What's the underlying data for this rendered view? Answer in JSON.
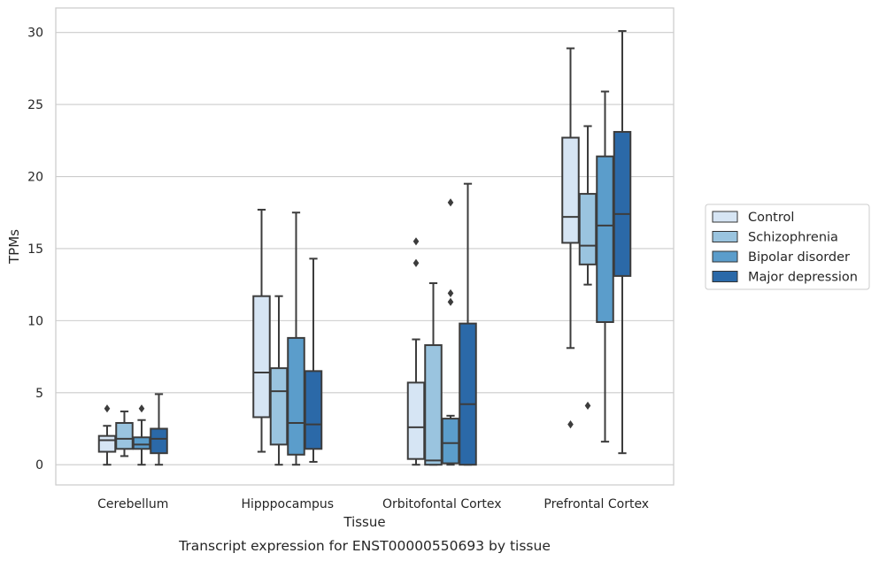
{
  "chart_data": {
    "type": "box",
    "title": "",
    "caption": "Transcript expression for ENST00000550693 by tissue",
    "xlabel": "Tissue",
    "ylabel": "TPMs",
    "ylim": [
      -1.4,
      31.7
    ],
    "yticks": [
      0,
      5,
      10,
      15,
      20,
      25,
      30
    ],
    "grid": "horizontal",
    "legend_position": "right",
    "categories": [
      "Cerebellum",
      "Hipppocampus",
      "Orbitofontal Cortex",
      "Prefrontal Cortex"
    ],
    "series": [
      {
        "name": "Control",
        "color": "#d6e5f4",
        "boxes": [
          {
            "whislo": 0.0,
            "q1": 0.9,
            "med": 1.7,
            "q3": 2.0,
            "whishi": 2.7,
            "fliers": [
              3.9
            ]
          },
          {
            "whislo": 0.9,
            "q1": 3.3,
            "med": 6.4,
            "q3": 11.7,
            "whishi": 17.7,
            "fliers": []
          },
          {
            "whislo": 0.0,
            "q1": 0.4,
            "med": 2.6,
            "q3": 5.7,
            "whishi": 8.7,
            "fliers": [
              14.0,
              15.5
            ]
          },
          {
            "whislo": 8.1,
            "q1": 15.4,
            "med": 17.2,
            "q3": 22.7,
            "whishi": 28.9,
            "fliers": [
              2.8
            ]
          }
        ]
      },
      {
        "name": "Schizophrenia",
        "color": "#9ac4df",
        "boxes": [
          {
            "whislo": 0.6,
            "q1": 1.1,
            "med": 1.8,
            "q3": 2.9,
            "whishi": 3.7,
            "fliers": []
          },
          {
            "whislo": 0.0,
            "q1": 1.4,
            "med": 5.1,
            "q3": 6.7,
            "whishi": 11.7,
            "fliers": []
          },
          {
            "whislo": 0.0,
            "q1": 0.0,
            "med": 0.3,
            "q3": 8.3,
            "whishi": 12.6,
            "fliers": []
          },
          {
            "whislo": 12.5,
            "q1": 13.9,
            "med": 15.2,
            "q3": 18.8,
            "whishi": 23.5,
            "fliers": [
              4.1
            ]
          }
        ]
      },
      {
        "name": "Bipolar disorder",
        "color": "#5b9dcb",
        "boxes": [
          {
            "whislo": 0.0,
            "q1": 1.1,
            "med": 1.4,
            "q3": 1.9,
            "whishi": 3.1,
            "fliers": [
              3.9
            ]
          },
          {
            "whislo": 0.0,
            "q1": 0.7,
            "med": 2.9,
            "q3": 8.8,
            "whishi": 17.5,
            "fliers": []
          },
          {
            "whislo": 0.0,
            "q1": 0.1,
            "med": 1.5,
            "q3": 3.2,
            "whishi": 3.4,
            "fliers": [
              11.3,
              11.9,
              18.2
            ]
          },
          {
            "whislo": 1.6,
            "q1": 9.9,
            "med": 16.6,
            "q3": 21.4,
            "whishi": 25.9,
            "fliers": []
          }
        ]
      },
      {
        "name": "Major depression",
        "color": "#2b69a8",
        "boxes": [
          {
            "whislo": 0.0,
            "q1": 0.8,
            "med": 1.8,
            "q3": 2.5,
            "whishi": 4.9,
            "fliers": []
          },
          {
            "whislo": 0.2,
            "q1": 1.1,
            "med": 2.8,
            "q3": 6.5,
            "whishi": 14.3,
            "fliers": []
          },
          {
            "whislo": 0.0,
            "q1": 0.0,
            "med": 4.2,
            "q3": 9.8,
            "whishi": 19.5,
            "fliers": []
          },
          {
            "whislo": 0.8,
            "q1": 13.1,
            "med": 17.4,
            "q3": 23.1,
            "whishi": 30.1,
            "fliers": []
          }
        ]
      }
    ]
  }
}
